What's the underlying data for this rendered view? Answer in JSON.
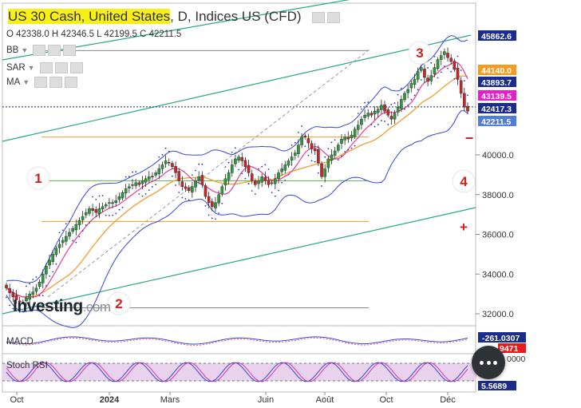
{
  "header": {
    "title_highlight": "US 30 Cash, United States",
    "title_rest": ", D, Indices US (CFD)",
    "ohlc": "O 42338.0  H 42346.5  L 42199.5  C 42211.5"
  },
  "indicators": [
    {
      "label": "BB"
    },
    {
      "label": "SAR"
    },
    {
      "label": "MA"
    }
  ],
  "logo": {
    "main": "Investing",
    "suffix": ".com"
  },
  "annotations": {
    "n1": "1",
    "n2": "2",
    "n3": "3",
    "n4": "4",
    "minus": "−",
    "plus": "+"
  },
  "price_tags": [
    {
      "text": "45862.6",
      "value": 45862.6,
      "bg": "#1b2c8f",
      "fg": "#ffffff"
    },
    {
      "text": "44140.0",
      "value": 44140.0,
      "bg": "#f59b22",
      "fg": "#ffffff"
    },
    {
      "text": "43893.7",
      "value": 43893.7,
      "bg": "#1b2c8f",
      "fg": "#ffffff"
    },
    {
      "text": "43139.5",
      "value": 43139.5,
      "bg": "#e620c8",
      "fg": "#ffffff"
    },
    {
      "text": "42417.3",
      "value": 42417.3,
      "bg": "#1b2c8f",
      "fg": "#ffffff"
    },
    {
      "text": "42211.5",
      "value": 42211.5,
      "bg": "#4f7dd8",
      "fg": "#ffffff"
    }
  ],
  "sub_panels": {
    "macd": {
      "label": "MACD",
      "value_text": "-261.0307",
      "partial_text": "9471"
    },
    "stoch": {
      "label": "Stoch RSI",
      "value_text": "5.5689",
      "partial_text": "0000"
    }
  },
  "chart_data": {
    "type": "candlestick",
    "y_ticks": [
      32000,
      34000,
      36000,
      38000,
      40000
    ],
    "y_tick_labels": [
      "32000.0",
      "34000.0",
      "36000.0",
      "38000.0",
      "40000.0"
    ],
    "x_labels": [
      "Oct",
      "2024",
      "Mars",
      "Juin",
      "Août",
      "Oct",
      "Déc"
    ],
    "colors": {
      "up": "#2d9c3c",
      "down": "#c8262b",
      "bb": "#3547d8",
      "ma_fast": "#e33d9a",
      "ma_slow": "#f3a23a",
      "sar": "#2a34c8",
      "channel": "#2aa68a",
      "level_orange": "#e8a033",
      "level_green": "#56b04a",
      "level_grey": "#888888",
      "annotation": "#d61e1e"
    },
    "horizontal_levels": [
      {
        "value": 45250,
        "color": "#888888"
      },
      {
        "value": 40900,
        "color": "#e8a033"
      },
      {
        "value": 38700,
        "color": "#56b04a"
      },
      {
        "value": 36650,
        "color": "#e8a033"
      },
      {
        "value": 32300,
        "color": "#888888"
      }
    ],
    "close_series": [
      33300,
      33050,
      32850,
      32700,
      32600,
      32600,
      32800,
      33000,
      33100,
      33300,
      33600,
      34000,
      34400,
      34700,
      35000,
      35300,
      35500,
      35700,
      35900,
      36100,
      36300,
      36500,
      36700,
      36900,
      37100,
      37300,
      37200,
      37100,
      37300,
      37400,
      37500,
      37600,
      37600,
      37700,
      37900,
      38100,
      38300,
      38400,
      38500,
      38600,
      38500,
      38700,
      38800,
      38900,
      38900,
      39100,
      39300,
      39500,
      39700,
      39600,
      39400,
      39100,
      38700,
      38400,
      38300,
      38200,
      38400,
      38700,
      38900,
      38500,
      37900,
      37600,
      37400,
      37600,
      38000,
      38400,
      38800,
      39100,
      39500,
      39800,
      39900,
      39700,
      39400,
      39100,
      38700,
      38500,
      38700,
      38900,
      38700,
      38500,
      38600,
      38800,
      39100,
      39300,
      39500,
      39700,
      39900,
      40100,
      40500,
      40900,
      40900,
      40600,
      40300,
      40200,
      39600,
      38900,
      39300,
      39800,
      40000,
      40200,
      40500,
      40800,
      40900,
      40800,
      41000,
      41300,
      41500,
      41800,
      42000,
      42100,
      42000,
      42200,
      42300,
      42500,
      42200,
      42000,
      41800,
      42100,
      42400,
      42800,
      43100,
      43300,
      43600,
      43800,
      44200,
      44400,
      43900,
      43700,
      44000,
      44400,
      44800,
      45000,
      45200,
      44900,
      44700,
      44300,
      43800,
      43100,
      42400,
      42200
    ]
  }
}
